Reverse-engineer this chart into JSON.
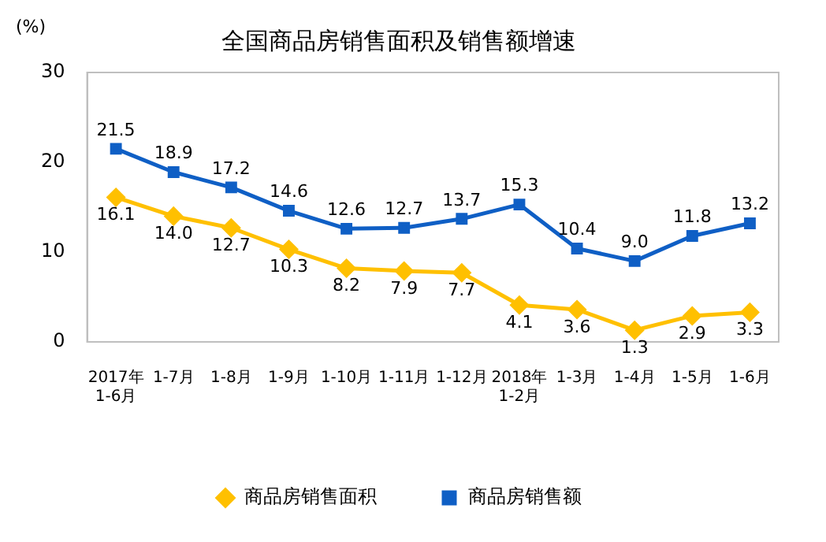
{
  "chart_data": {
    "type": "line",
    "title": "全国商品房销售面积及销售额增速",
    "ylabel": "(%)",
    "categories": [
      "2017年\n1-6月",
      "1-7月",
      "1-8月",
      "1-9月",
      "1-10月",
      "1-11月",
      "1-12月",
      "2018年\n1-2月",
      "1-3月",
      "1-4月",
      "1-5月",
      "1-6月"
    ],
    "series": [
      {
        "name": "商品房销售面积",
        "color": "#ffc000",
        "marker": "diamond",
        "values": [
          16.1,
          14.0,
          12.7,
          10.3,
          8.2,
          7.9,
          7.7,
          4.1,
          3.6,
          1.3,
          2.9,
          3.3
        ],
        "value_labels": [
          "16.1",
          "14.0",
          "12.7",
          "10.3",
          "8.2",
          "7.9",
          "7.7",
          "4.1",
          "3.6",
          "1.3",
          "2.9",
          "3.3"
        ]
      },
      {
        "name": "商品房销售额",
        "color": "#0f5fc5",
        "marker": "square",
        "values": [
          21.5,
          18.9,
          17.2,
          14.6,
          12.6,
          12.7,
          13.7,
          15.3,
          10.4,
          9.0,
          11.8,
          13.2
        ],
        "value_labels": [
          "21.5",
          "18.9",
          "17.2",
          "14.6",
          "12.6",
          "12.7",
          "13.7",
          "15.3",
          "10.4",
          "9.0",
          "11.8",
          "13.2"
        ]
      }
    ],
    "ylim": [
      0,
      30
    ],
    "yticks": [
      0,
      10,
      20,
      30
    ],
    "grid": false,
    "legend": "bottom",
    "line_style": "solid"
  }
}
